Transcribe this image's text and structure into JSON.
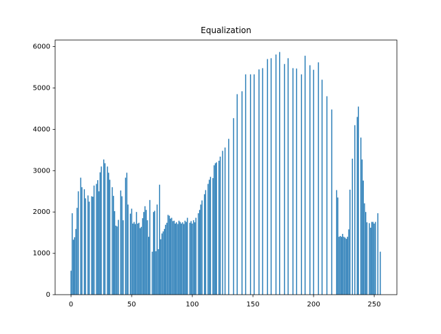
{
  "chart_data": {
    "type": "bar",
    "title": "Equalization",
    "color": "#1f77b4",
    "xlim": [
      -13.1,
      268.7
    ],
    "ylim": [
      0,
      6160
    ],
    "xticks": [
      0,
      50,
      100,
      150,
      200,
      250
    ],
    "yticks": [
      0,
      1000,
      2000,
      3000,
      4000,
      5000,
      6000
    ],
    "x": [
      0,
      1,
      2,
      3,
      4,
      5,
      6,
      7,
      8,
      9,
      10,
      11,
      12,
      13,
      14,
      15,
      16,
      17,
      18,
      19,
      20,
      21,
      22,
      23,
      24,
      25,
      26,
      27,
      28,
      29,
      30,
      31,
      32,
      33,
      34,
      35,
      36,
      37,
      38,
      39,
      40,
      41,
      42,
      43,
      44,
      45,
      46,
      47,
      48,
      49,
      50,
      51,
      52,
      53,
      54,
      55,
      56,
      57,
      58,
      59,
      60,
      61,
      62,
      63,
      64,
      65,
      66,
      67,
      68,
      69,
      70,
      71,
      72,
      73,
      74,
      75,
      76,
      77,
      78,
      79,
      80,
      81,
      82,
      83,
      84,
      85,
      86,
      87,
      88,
      89,
      90,
      91,
      92,
      93,
      94,
      95,
      96,
      97,
      98,
      99,
      100,
      101,
      102,
      103,
      104,
      105,
      106,
      107,
      108,
      109,
      110,
      111,
      112,
      113,
      114,
      115,
      116,
      117,
      118,
      119,
      120,
      121,
      122,
      123,
      124,
      125,
      126,
      127,
      128,
      129,
      130,
      131,
      132,
      133,
      134,
      135,
      136,
      137,
      138,
      139,
      140,
      141,
      142,
      143,
      144,
      145,
      146,
      147,
      148,
      149,
      150,
      151,
      152,
      153,
      154,
      155,
      156,
      157,
      158,
      159,
      160,
      161,
      162,
      163,
      164,
      165,
      166,
      167,
      168,
      169,
      170,
      171,
      172,
      173,
      174,
      175,
      176,
      177,
      178,
      179,
      180,
      181,
      182,
      183,
      184,
      185,
      186,
      187,
      188,
      189,
      190,
      191,
      192,
      193,
      194,
      195,
      196,
      197,
      198,
      199,
      200,
      201,
      202,
      203,
      204,
      205,
      206,
      207,
      208,
      209,
      210,
      211,
      212,
      213,
      214,
      215,
      216,
      217,
      218,
      219,
      220,
      221,
      222,
      223,
      224,
      225,
      226,
      227,
      228,
      229,
      230,
      231,
      232,
      233,
      234,
      235,
      236,
      237,
      238,
      239,
      240,
      241,
      242,
      243,
      244,
      245,
      246,
      247,
      248,
      249,
      250,
      251,
      252,
      253,
      254,
      255
    ],
    "values": [
      580,
      1970,
      1330,
      1390,
      1590,
      2100,
      2500,
      0,
      2830,
      2600,
      0,
      2550,
      2330,
      0,
      2400,
      2250,
      0,
      2380,
      2370,
      2640,
      0,
      2680,
      2770,
      2500,
      2960,
      3100,
      0,
      3270,
      3180,
      0,
      3100,
      2950,
      2780,
      0,
      2600,
      2390,
      2020,
      1670,
      1650,
      1810,
      0,
      2520,
      2380,
      1800,
      0,
      2830,
      2950,
      2180,
      0,
      1960,
      2080,
      1720,
      1760,
      1710,
      2000,
      1720,
      1740,
      1610,
      1640,
      1850,
      2000,
      2140,
      2050,
      1800,
      1400,
      2290,
      0,
      1040,
      2000,
      2030,
      1050,
      2180,
      1100,
      2660,
      1340,
      1480,
      1530,
      1590,
      1690,
      1740,
      1930,
      1910,
      1840,
      1860,
      1780,
      1790,
      1720,
      1750,
      1710,
      1790,
      1760,
      1720,
      1750,
      1710,
      1790,
      1760,
      1860,
      0,
      1740,
      1780,
      1720,
      1800,
      1750,
      1860,
      0,
      1970,
      2050,
      2180,
      2280,
      0,
      2430,
      2530,
      0,
      2680,
      2780,
      2850,
      0,
      2820,
      3130,
      3180,
      3200,
      0,
      3240,
      3340,
      0,
      3480,
      0,
      3560,
      0,
      0,
      3770,
      0,
      0,
      0,
      4270,
      0,
      0,
      4850,
      0,
      0,
      0,
      4920,
      0,
      0,
      5330,
      0,
      0,
      0,
      5330,
      0,
      0,
      5330,
      0,
      0,
      0,
      5450,
      0,
      0,
      5480,
      0,
      0,
      0,
      5700,
      0,
      0,
      5720,
      0,
      0,
      0,
      5810,
      0,
      0,
      5870,
      0,
      0,
      0,
      5580,
      0,
      0,
      5720,
      0,
      0,
      0,
      5480,
      0,
      0,
      5470,
      0,
      0,
      0,
      5330,
      0,
      0,
      5780,
      0,
      0,
      0,
      5550,
      0,
      0,
      5440,
      0,
      0,
      0,
      5620,
      0,
      0,
      5200,
      0,
      0,
      0,
      4800,
      0,
      0,
      0,
      4480,
      0,
      0,
      0,
      2530,
      2350,
      1400,
      1420,
      1400,
      1470,
      1400,
      1380,
      1350,
      1400,
      1580,
      2540,
      0,
      3290,
      0,
      4100,
      0,
      4300,
      4550,
      0,
      3800,
      3270,
      2760,
      2210,
      2000,
      1750,
      0,
      1730,
      1620,
      1760,
      1760,
      1720,
      1760,
      0,
      1970,
      0,
      1040
    ]
  }
}
